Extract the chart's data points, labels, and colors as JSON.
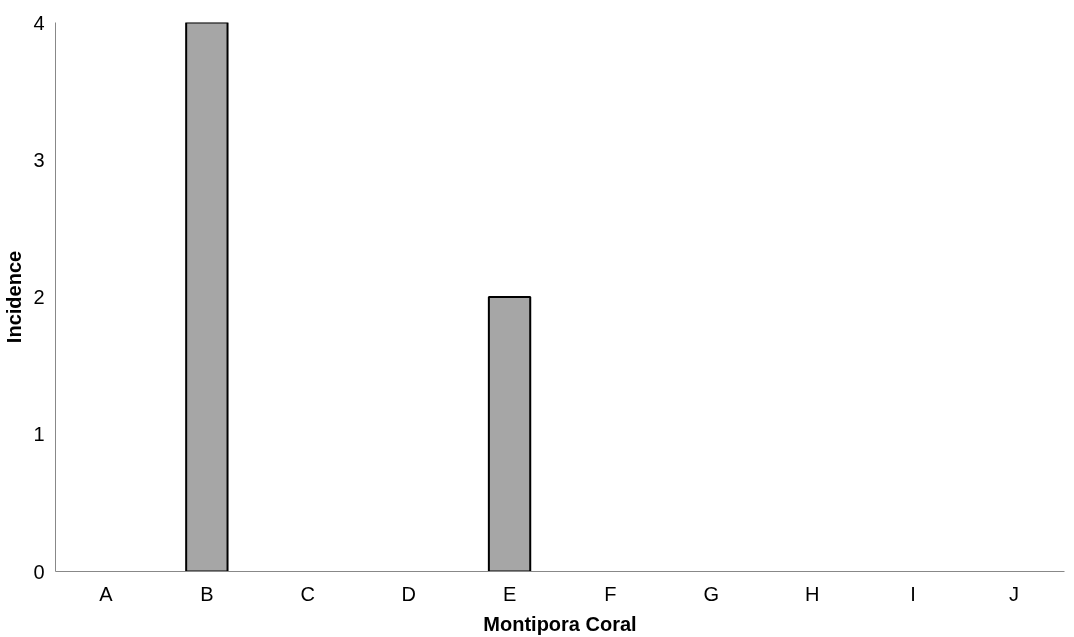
{
  "chart_data": {
    "type": "bar",
    "xlabel": "Montipora Coral",
    "ylabel": "Incidence",
    "categories": [
      "A",
      "B",
      "C",
      "D",
      "E",
      "F",
      "G",
      "H",
      "I",
      "J"
    ],
    "values": [
      0,
      4,
      0,
      0,
      2,
      0,
      0,
      0,
      0,
      0
    ],
    "color": "#a6a6a6",
    "ylim": [
      0,
      4
    ],
    "yticks": [
      0,
      1,
      2,
      3,
      4
    ],
    "grid": false
  }
}
